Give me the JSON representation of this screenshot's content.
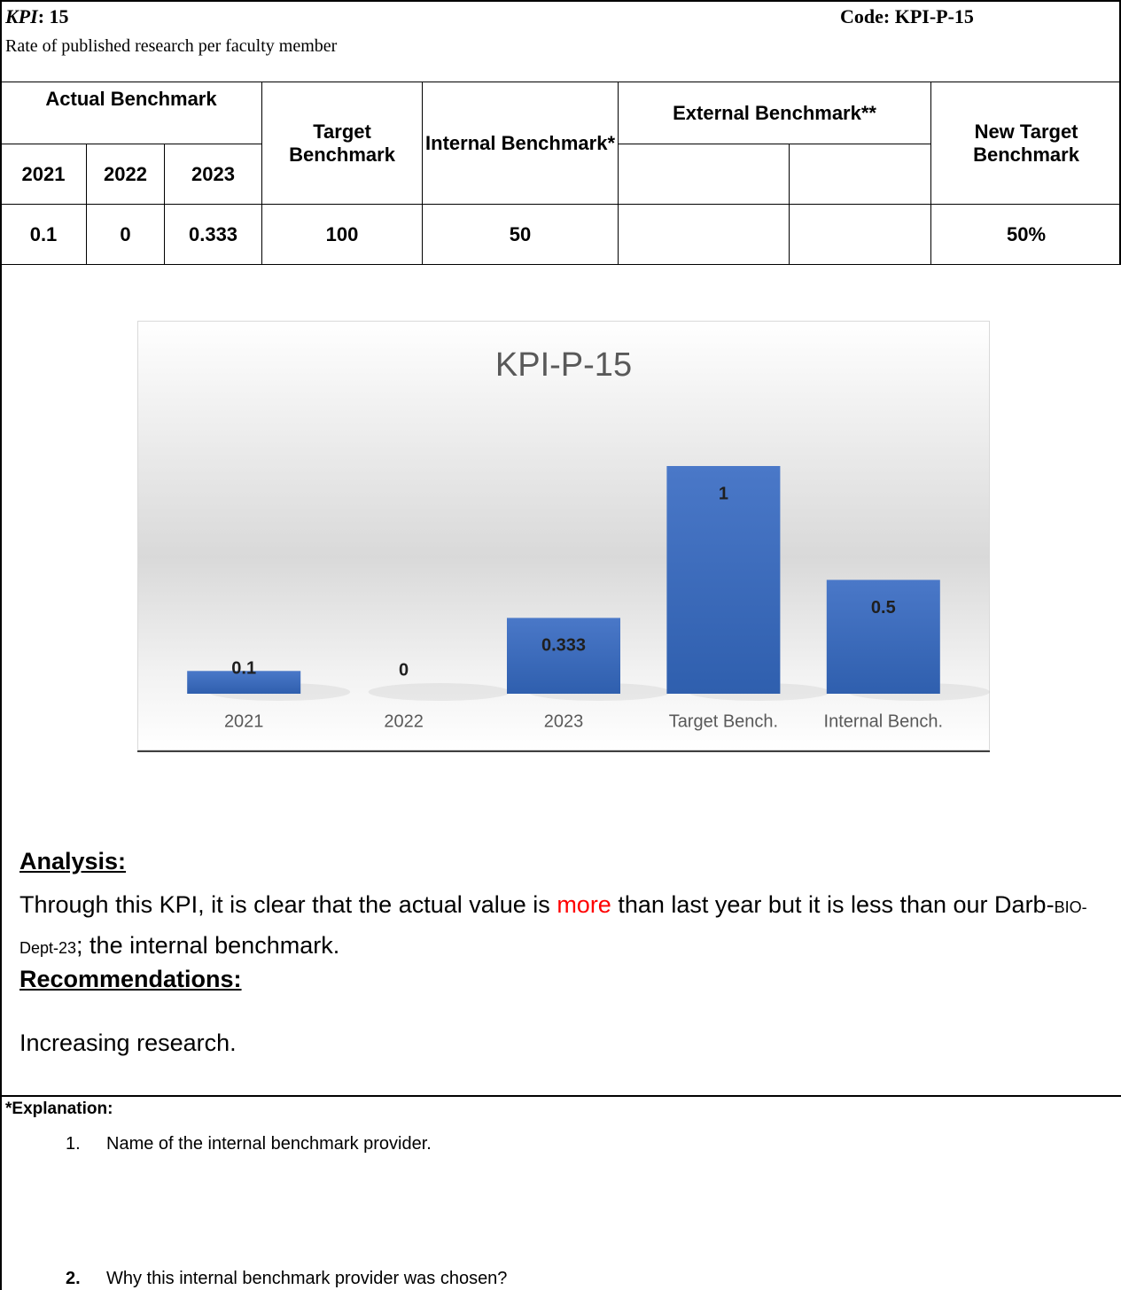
{
  "header": {
    "kpi_label": "KPI",
    "kpi_value": ": 15",
    "code": "Code: KPI-P-15",
    "description": "Rate of published research per faculty member"
  },
  "table": {
    "headers": {
      "actual": "Actual Benchmark",
      "years": [
        "2021",
        "2022",
        "2023"
      ],
      "target": "Target Benchmark",
      "internal": "Internal Benchmark*",
      "external": "External Benchmark**",
      "new_target": "New Target Benchmark"
    },
    "values": {
      "years": [
        "0.1",
        "0",
        "0.333"
      ],
      "target": "100",
      "internal": "50",
      "new_target": "50%"
    }
  },
  "chart_data": {
    "type": "bar",
    "title": "KPI-P-15",
    "categories": [
      "2021",
      "2022",
      "2023",
      "Target Bench.",
      "Internal Bench."
    ],
    "values": [
      0.1,
      0,
      0.333,
      1,
      0.5
    ],
    "color": "#4472c4"
  },
  "analysis": {
    "heading": "Analysis:",
    "parts": [
      "Through this KPI, it is clear that the actual value is ",
      "more",
      " than last year but it is less than our Darb-",
      "BIO-Dept-23",
      "; the internal benchmark."
    ]
  },
  "recommendations": {
    "heading": "Recommendations:",
    "text": "Increasing research."
  },
  "explanation": {
    "heading": "*Explanation:",
    "items": [
      {
        "number": "1.",
        "text": "Name of the internal benchmark provider."
      },
      {
        "number": "2.",
        "text": "Why this internal benchmark provider was chosen?"
      }
    ]
  }
}
